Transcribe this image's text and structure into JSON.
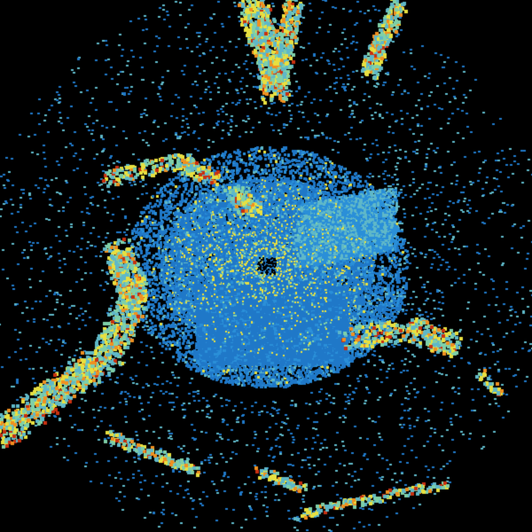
{
  "image": {
    "kind": "radar-reflectivity-sweep",
    "background": "#000000",
    "palette": {
      "weak": "#1f78c8",
      "light": "#2a8fd8",
      "moderate": "#5fb8c8",
      "teal": "#7fd0a8",
      "yellow": "#e8e040",
      "orange": "#f09020",
      "red": "#c83010"
    }
  }
}
